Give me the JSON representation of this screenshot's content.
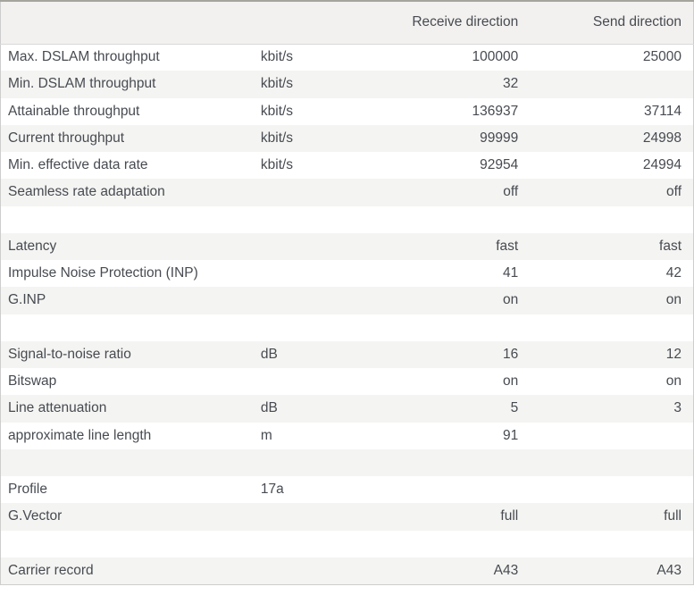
{
  "table": {
    "header": {
      "label": "",
      "unit": "",
      "receive": "Receive direction",
      "send": "Send direction"
    },
    "rows": [
      {
        "label": "Max. DSLAM throughput",
        "unit": "kbit/s",
        "receive": "100000",
        "send": "25000"
      },
      {
        "label": "Min. DSLAM throughput",
        "unit": "kbit/s",
        "receive": "32",
        "send": ""
      },
      {
        "label": "Attainable throughput",
        "unit": "kbit/s",
        "receive": "136937",
        "send": "37114"
      },
      {
        "label": "Current throughput",
        "unit": "kbit/s",
        "receive": "99999",
        "send": "24998"
      },
      {
        "label": "Min. effective data rate",
        "unit": "kbit/s",
        "receive": "92954",
        "send": "24994"
      },
      {
        "label": "Seamless rate adaptation",
        "unit": "",
        "receive": "off",
        "send": "off"
      },
      {
        "blank": true,
        "label": "",
        "unit": "",
        "receive": "",
        "send": ""
      },
      {
        "label": "Latency",
        "unit": "",
        "receive": "fast",
        "send": "fast"
      },
      {
        "label": "Impulse Noise Protection (INP)",
        "unit": "",
        "receive": "41",
        "send": "42"
      },
      {
        "label": "G.INP",
        "unit": "",
        "receive": "on",
        "send": "on"
      },
      {
        "blank": true,
        "label": "",
        "unit": "",
        "receive": "",
        "send": ""
      },
      {
        "label": "Signal-to-noise ratio",
        "unit": "dB",
        "receive": "16",
        "send": "12"
      },
      {
        "label": "Bitswap",
        "unit": "",
        "receive": "on",
        "send": "on"
      },
      {
        "label": "Line attenuation",
        "unit": "dB",
        "receive": "5",
        "send": "3"
      },
      {
        "label": "approximate line length",
        "unit": "m",
        "receive": "91",
        "send": ""
      },
      {
        "blank": true,
        "label": "",
        "unit": "",
        "receive": "",
        "send": ""
      },
      {
        "label": "Profile",
        "unit": "17a",
        "receive": "",
        "send": ""
      },
      {
        "label": "G.Vector",
        "unit": "",
        "receive": "full",
        "send": "full"
      },
      {
        "blank": true,
        "label": "",
        "unit": "",
        "receive": "",
        "send": ""
      },
      {
        "label": "Carrier record",
        "unit": "",
        "receive": "A43",
        "send": "A43"
      }
    ]
  },
  "colors": {
    "text": "#474b51",
    "stripe_background": "#f4f4f2",
    "header_background": "#f2f1ef",
    "outer_border": "#cdcdcd",
    "top_border": "#a5a59d",
    "header_divider": "#d9d9d9",
    "page_background": "#ffffff"
  }
}
